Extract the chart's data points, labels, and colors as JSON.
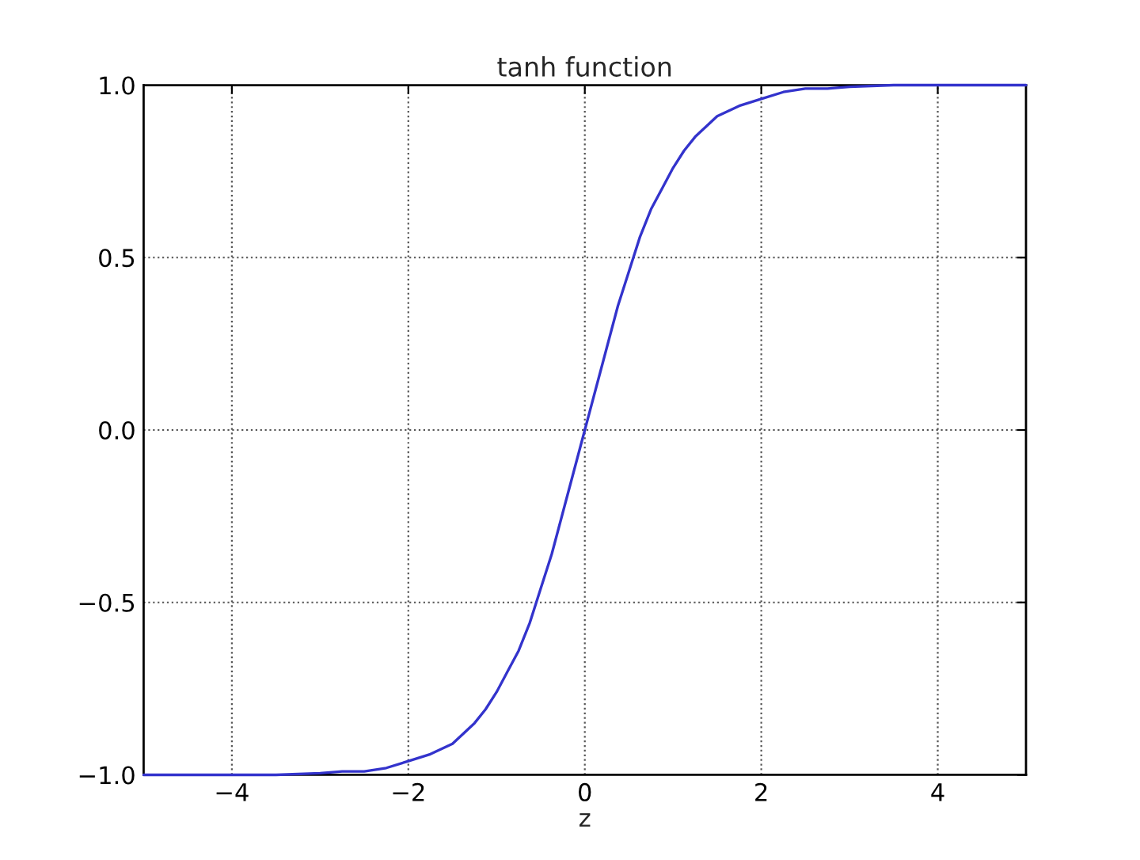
{
  "chart_data": {
    "type": "line",
    "title": "tanh function",
    "xlabel": "z",
    "series": [
      {
        "color": "#3333cc",
        "x": [
          -5,
          -4.5,
          -4,
          -3.5,
          -3,
          -2.75,
          -2.5,
          -2.25,
          -2,
          -1.75,
          -1.5,
          -1.25,
          -1.125,
          -1,
          -0.875,
          -0.75,
          -0.625,
          -0.5,
          -0.375,
          -0.25,
          -0.125,
          0,
          0.125,
          0.25,
          0.375,
          0.5,
          0.625,
          0.75,
          0.875,
          1,
          1.125,
          1.25,
          1.5,
          1.75,
          2,
          2.25,
          2.5,
          2.75,
          3,
          3.5,
          4,
          4.5,
          5
        ],
        "values": [
          -1.0,
          -1.0,
          -1.0,
          -1.0,
          -0.995,
          -0.99,
          -0.99,
          -0.98,
          -0.96,
          -0.94,
          -0.91,
          -0.85,
          -0.81,
          -0.76,
          -0.7,
          -0.64,
          -0.56,
          -0.46,
          -0.36,
          -0.24,
          -0.12,
          0.0,
          0.12,
          0.24,
          0.36,
          0.46,
          0.56,
          0.64,
          0.7,
          0.76,
          0.81,
          0.85,
          0.91,
          0.94,
          0.96,
          0.98,
          0.99,
          0.99,
          0.995,
          1.0,
          1.0,
          1.0,
          1.0
        ]
      }
    ],
    "xlim": [
      -5,
      5
    ],
    "ylim": [
      -1.0,
      1.0
    ],
    "xticks": [
      {
        "value": -4,
        "label": "−4"
      },
      {
        "value": -2,
        "label": "−2"
      },
      0,
      2,
      4
    ],
    "yticks": [
      {
        "value": -1.0,
        "label": "−1.0"
      },
      {
        "value": -0.5,
        "label": "−0.5"
      },
      {
        "value": 0.0,
        "label": "0.0"
      },
      {
        "value": 0.5,
        "label": "0.5"
      },
      {
        "value": 1.0,
        "label": "1.0"
      }
    ],
    "grid": true,
    "line_style": "solid",
    "marker": "none"
  }
}
